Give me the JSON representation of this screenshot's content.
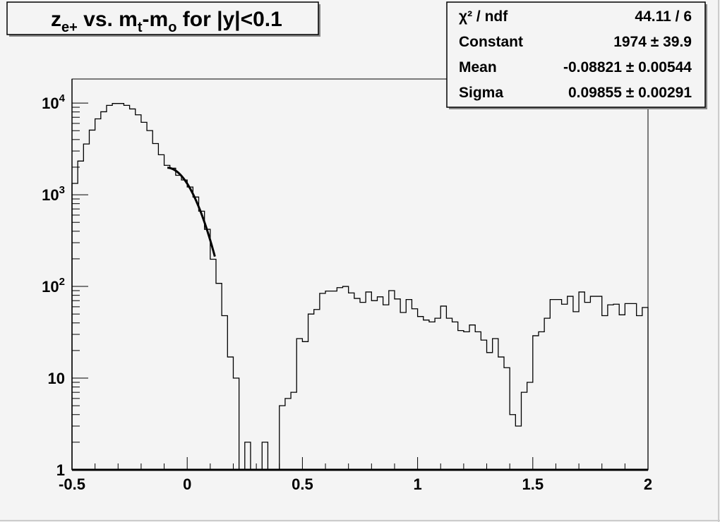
{
  "chart_data": {
    "type": "histogram",
    "title": {
      "base": "z",
      "sub1": "e+",
      "mid": " vs. m",
      "sub2": "t",
      "mid2": "-m",
      "sub3": "o",
      "tail": " for |y|<0.1"
    },
    "xlim": [
      -0.5,
      2.0
    ],
    "ylim": [
      1,
      18300
    ],
    "yscale": "log",
    "grid": false,
    "x_ticks": [
      {
        "v": -0.5,
        "label": "-0.5"
      },
      {
        "v": 0,
        "label": "0"
      },
      {
        "v": 0.5,
        "label": "0.5"
      },
      {
        "v": 1,
        "label": "1"
      },
      {
        "v": 1.5,
        "label": "1.5"
      },
      {
        "v": 2,
        "label": "2"
      }
    ],
    "y_ticks": [
      {
        "v": 1,
        "label": "1",
        "exp": ""
      },
      {
        "v": 10,
        "label": "10",
        "exp": ""
      },
      {
        "v": 100,
        "label": "10",
        "exp": "2"
      },
      {
        "v": 1000,
        "label": "10",
        "exp": "3"
      },
      {
        "v": 10000,
        "label": "10",
        "exp": "4"
      }
    ],
    "bin_width": 0.025,
    "bin_values": [
      1330,
      2330,
      3580,
      5070,
      6730,
      8040,
      9440,
      9900,
      9900,
      9440,
      8630,
      7450,
      6170,
      5010,
      3620,
      2730,
      2095,
      1950,
      1630,
      1450,
      1215,
      944,
      662,
      420,
      198,
      108,
      48,
      17,
      10,
      0,
      2,
      0,
      0,
      2,
      0,
      0,
      5,
      6,
      7,
      27,
      25,
      50,
      56,
      84,
      89,
      89,
      97,
      100,
      85,
      74,
      67,
      87,
      70,
      77,
      63,
      90,
      73,
      52,
      72,
      57,
      47,
      43,
      41,
      45,
      61,
      45,
      41,
      33,
      32,
      38,
      32,
      26,
      19,
      27,
      17,
      13,
      4,
      3,
      7,
      9,
      29,
      32,
      45,
      72,
      72,
      64,
      78,
      53,
      87,
      67,
      78,
      78,
      48,
      63,
      64,
      49,
      65,
      65,
      48,
      59
    ],
    "fit": {
      "function": "gaus",
      "range": [
        -0.086,
        0.12
      ],
      "constant": 1974,
      "mean": -0.08821,
      "sigma": 0.09855
    },
    "stats_box": {
      "rows": [
        {
          "label": "χ² / ndf",
          "value": "44.11 / 6"
        },
        {
          "label": "Constant",
          "value": "1974 ± 39.9"
        },
        {
          "label": "Mean",
          "value": "-0.08821 ± 0.00544"
        },
        {
          "label": "Sigma",
          "value": "0.09855 ± 0.00291"
        }
      ]
    },
    "colors": {
      "background": "#f4f4f4",
      "line": "#000000"
    }
  }
}
